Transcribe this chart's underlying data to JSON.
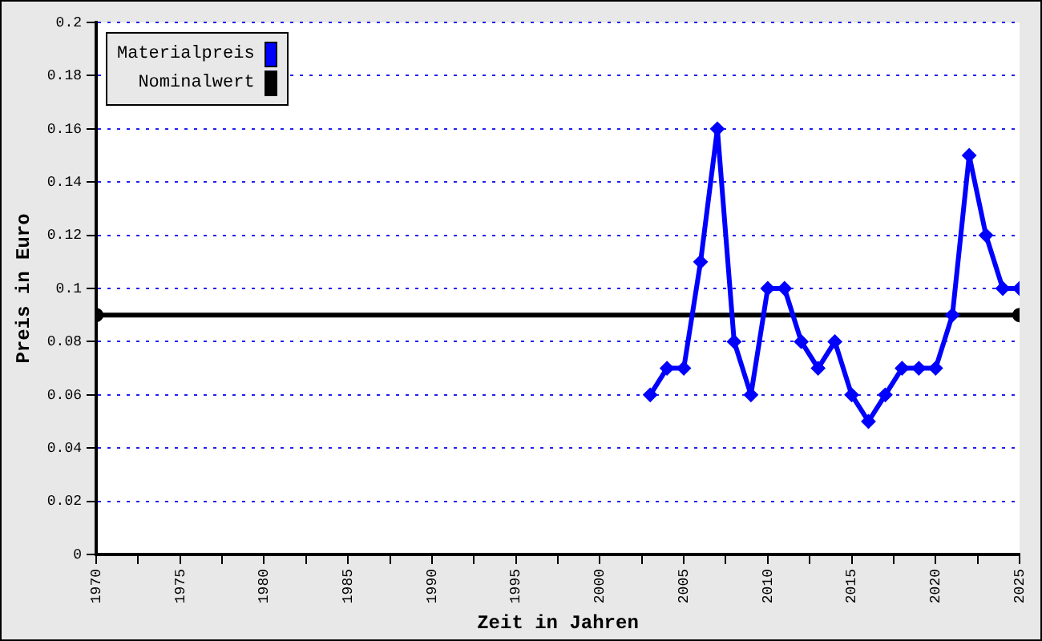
{
  "chart_data": {
    "type": "line",
    "xlabel": "Zeit in Jahren",
    "ylabel": "Preis in Euro",
    "series": [
      {
        "name": "Materialpreis",
        "color": "#0000ff",
        "x": [
          2003,
          2004,
          2005,
          2006,
          2007,
          2008,
          2009,
          2010,
          2011,
          2012,
          2013,
          2014,
          2015,
          2016,
          2017,
          2018,
          2019,
          2020,
          2021,
          2022,
          2023,
          2024,
          2025
        ],
        "values": [
          0.06,
          0.07,
          0.07,
          0.11,
          0.16,
          0.08,
          0.06,
          0.1,
          0.1,
          0.08,
          0.07,
          0.08,
          0.06,
          0.05,
          0.06,
          0.07,
          0.07,
          0.07,
          0.09,
          0.15,
          0.12,
          0.1,
          0.1
        ],
        "marker": "diamond"
      },
      {
        "name": "Nominalwert",
        "color": "#000000",
        "x": [
          1970,
          2025
        ],
        "values": [
          0.09,
          0.09
        ],
        "marker": "circle"
      }
    ],
    "xlim": [
      1970,
      2025
    ],
    "xticks": [
      1970,
      {
        "value": 1972.5,
        "label": null
      },
      1975,
      {
        "value": 1977.5,
        "label": null
      },
      1980,
      {
        "value": 1982.5,
        "label": null
      },
      1985,
      {
        "value": 1987.5,
        "label": null
      },
      1990,
      {
        "value": 1992.5,
        "label": null
      },
      1995,
      {
        "value": 1997.5,
        "label": null
      },
      2000,
      {
        "value": 2002.5,
        "label": null
      },
      2005,
      {
        "value": 2007.5,
        "label": null
      },
      2010,
      {
        "value": 2012.5,
        "label": null
      },
      2015,
      {
        "value": 2017.5,
        "label": null
      },
      2020,
      {
        "value": 2022.5,
        "label": null
      },
      2025
    ],
    "ylim": [
      0,
      0.2
    ],
    "yticks": [
      0,
      0.02,
      0.04,
      0.06,
      0.08,
      0.1,
      0.12,
      0.14,
      0.16,
      0.18,
      0.2
    ],
    "grid": "y",
    "legend": "top left",
    "line_style": "solid"
  }
}
